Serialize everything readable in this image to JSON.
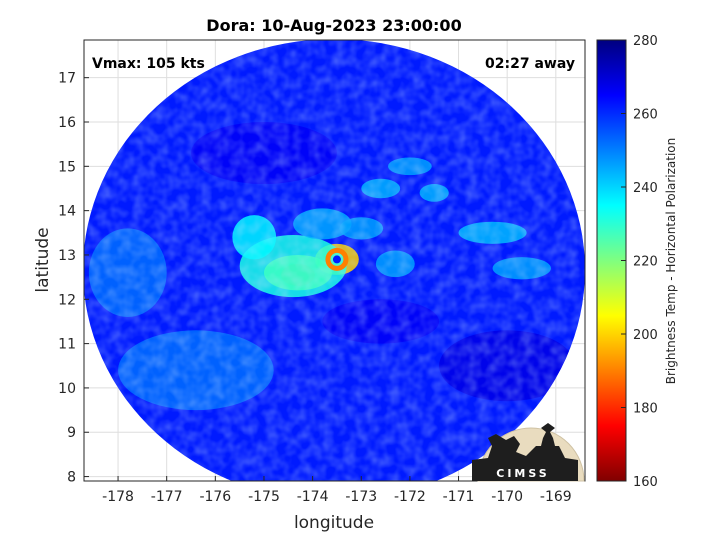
{
  "chart_data": {
    "type": "heatmap",
    "title": "Dora: 10-Aug-2023 23:00:00",
    "xlabel": "longitude",
    "ylabel": "latitude",
    "xlim": [
      -178.7,
      -168.4
    ],
    "ylim": [
      7.9,
      17.85
    ],
    "x_ticks": [
      -178,
      -177,
      -176,
      -175,
      -174,
      -173,
      -172,
      -171,
      -170,
      -169
    ],
    "y_ticks": [
      8,
      9,
      10,
      11,
      12,
      13,
      14,
      15,
      16,
      17
    ],
    "grid": true,
    "annotations": {
      "top_left": "Vmax: 105 kts",
      "top_right": "02:27 away"
    },
    "colorbar": {
      "label": "Brightness Temp - Horizontal Polarization",
      "range": [
        160,
        280
      ],
      "ticks": [
        160,
        180,
        200,
        220,
        240,
        260,
        280
      ],
      "colormap": "jet"
    },
    "storm": {
      "center": {
        "lon": -173.5,
        "lat": 12.9
      },
      "eye_temp": 262,
      "eyewall_min_temp": 190
    },
    "field": {
      "background_temp": 262,
      "features": [
        {
          "lon": -173.5,
          "lat": 12.9,
          "rlon": 0.45,
          "rlat": 0.35,
          "temp": 200
        },
        {
          "lon": -174.3,
          "lat": 12.6,
          "rlon": 0.7,
          "rlat": 0.4,
          "temp": 205
        },
        {
          "lon": -174.3,
          "lat": 12.55,
          "rlon": 0.35,
          "rlat": 0.25,
          "temp": 198
        },
        {
          "lon": -174.4,
          "lat": 12.75,
          "rlon": 1.1,
          "rlat": 0.7,
          "temp": 232
        },
        {
          "lon": -175.2,
          "lat": 13.4,
          "rlon": 0.45,
          "rlat": 0.5,
          "temp": 236
        },
        {
          "lon": -173.8,
          "lat": 13.7,
          "rlon": 0.6,
          "rlat": 0.35,
          "temp": 245
        },
        {
          "lon": -173.0,
          "lat": 13.6,
          "rlon": 0.45,
          "rlat": 0.25,
          "temp": 246
        },
        {
          "lon": -172.3,
          "lat": 12.8,
          "rlon": 0.4,
          "rlat": 0.3,
          "temp": 246
        },
        {
          "lon": -172.0,
          "lat": 15.0,
          "rlon": 0.45,
          "rlat": 0.2,
          "temp": 246
        },
        {
          "lon": -172.6,
          "lat": 14.5,
          "rlon": 0.4,
          "rlat": 0.22,
          "temp": 244
        },
        {
          "lon": -171.5,
          "lat": 14.4,
          "rlon": 0.3,
          "rlat": 0.2,
          "temp": 244
        },
        {
          "lon": -170.3,
          "lat": 13.5,
          "rlon": 0.7,
          "rlat": 0.25,
          "temp": 243
        },
        {
          "lon": -169.7,
          "lat": 12.7,
          "rlon": 0.6,
          "rlat": 0.25,
          "temp": 246
        },
        {
          "lon": -176.4,
          "lat": 10.4,
          "rlon": 1.6,
          "rlat": 0.9,
          "temp": 252
        },
        {
          "lon": -175.0,
          "lat": 15.3,
          "rlon": 1.5,
          "rlat": 0.7,
          "temp": 266
        },
        {
          "lon": -172.6,
          "lat": 11.5,
          "rlon": 1.2,
          "rlat": 0.5,
          "temp": 266
        },
        {
          "lon": -170.0,
          "lat": 10.5,
          "rlon": 1.4,
          "rlat": 0.8,
          "temp": 268
        },
        {
          "lon": -177.8,
          "lat": 12.6,
          "rlon": 0.8,
          "rlat": 1.0,
          "temp": 252
        }
      ]
    }
  },
  "logo": {
    "text": "CIMSS"
  }
}
